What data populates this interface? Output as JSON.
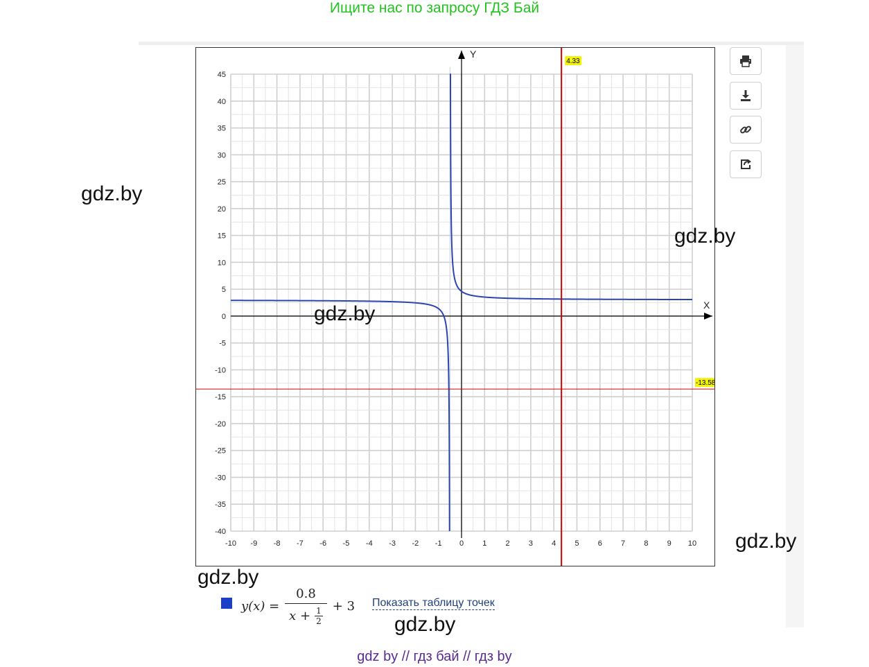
{
  "banner": {
    "text": "Ищите нас по запросу ГДЗ Бай"
  },
  "watermarks": {
    "left": "gdz.by",
    "right_mid": "gdz.by",
    "center": "gdz.by",
    "right_low": "gdz.by",
    "below_chart": "gdz.by",
    "below_formula": "gdz.by"
  },
  "toolbar": {
    "print_icon": "printer-icon",
    "download_icon": "download-icon",
    "link_icon": "link-icon",
    "share_icon": "share-icon"
  },
  "legend": {
    "color": "#1b3fc6",
    "y_of_x": "y(x) =",
    "numerator": "0.8",
    "denominator_x": "x +",
    "small_num": "1",
    "small_den": "2",
    "plus_term": "+ 3",
    "show_table_link": "Показать таблицу точек"
  },
  "footer": {
    "text": "gdz by  //  гдз бай  //  гдз by"
  },
  "chart_data": {
    "type": "line",
    "function": "y = 0.8/(x + 1/2) + 3",
    "xlabel": "X",
    "ylabel": "Y",
    "xlim": [
      -10,
      10
    ],
    "ylim": [
      -40,
      45
    ],
    "x_ticks": [
      -10,
      -9,
      -8,
      -7,
      -6,
      -5,
      -4,
      -3,
      -2,
      -1,
      0,
      1,
      2,
      3,
      4,
      5,
      6,
      7,
      8,
      9,
      10
    ],
    "y_ticks": [
      45,
      40,
      35,
      30,
      25,
      20,
      15,
      10,
      5,
      0,
      -5,
      -10,
      -15,
      -20,
      -25,
      -30,
      -35,
      -40
    ],
    "grid": true,
    "series_color": "#2a44b0",
    "asymptote_x": -0.5,
    "crosshair": {
      "x": 4.33,
      "y": -13.58,
      "x_label": "4.33",
      "y_label": "-13.58",
      "color": "#cc0000"
    }
  }
}
